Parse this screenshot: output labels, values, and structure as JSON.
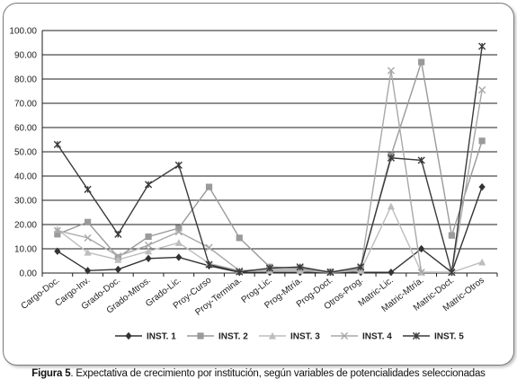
{
  "chart_data": {
    "type": "line",
    "title": "",
    "xlabel": "",
    "ylabel": "",
    "ylim": [
      0,
      100
    ],
    "yticks": [
      "0.00",
      "10.00",
      "20.00",
      "30.00",
      "40.00",
      "50.00",
      "60.00",
      "70.00",
      "80.00",
      "90.00",
      "100.00"
    ],
    "grid": true,
    "legend_position": "bottom",
    "categories": [
      "Cargo-Doc.",
      "Cargo-Inv.",
      "Grado-Doc.",
      "Grado-Mtros.",
      "Grado-Lic.",
      "Proy-Curso",
      "Proy-Termina.",
      "Prog-Lic.",
      "Prog-Mtría.",
      "Prog-Doct.",
      "Otros-Prog.",
      "Matric-Lic.",
      "Matric-Mtría.",
      "Matric-Doct.",
      "Matric-Otros"
    ],
    "series": [
      {
        "name": "INST. 1",
        "color": "#333333",
        "marker": "diamond",
        "values": [
          9,
          1,
          1.5,
          6,
          6.5,
          3,
          0.3,
          0.3,
          0.3,
          0.3,
          0.3,
          0.3,
          10,
          0.3,
          35.5
        ]
      },
      {
        "name": "INST. 2",
        "color": "#9a9a9a",
        "marker": "square",
        "values": [
          16,
          21,
          6.5,
          15,
          18.5,
          35.5,
          14.5,
          2.5,
          2,
          0.5,
          2,
          48.5,
          87,
          15.5,
          54.5
        ]
      },
      {
        "name": "INST. 3",
        "color": "#bdbdbd",
        "marker": "triangle",
        "values": [
          18,
          8.5,
          5.5,
          9,
          12.5,
          4,
          1,
          1,
          1,
          0.3,
          1,
          27.5,
          0.3,
          0.3,
          4.5
        ]
      },
      {
        "name": "INST. 4",
        "color": "#a8a8a8",
        "marker": "x",
        "values": [
          17.5,
          14.5,
          7,
          11.5,
          17,
          10.5,
          1,
          1.5,
          1.5,
          0.5,
          1.5,
          83.5,
          0.3,
          0.3,
          75.5
        ]
      },
      {
        "name": "INST. 5",
        "color": "#3a3a3a",
        "marker": "star",
        "values": [
          53,
          34.5,
          16,
          36.5,
          44.5,
          3.5,
          0.5,
          2,
          2.5,
          0.3,
          2.5,
          47.5,
          46.5,
          0.3,
          93.5
        ]
      }
    ]
  },
  "caption": {
    "label": "Figura 5",
    "text": ". Expectativa de crecimiento por institución, según variables de potencialidades seleccionadas"
  }
}
